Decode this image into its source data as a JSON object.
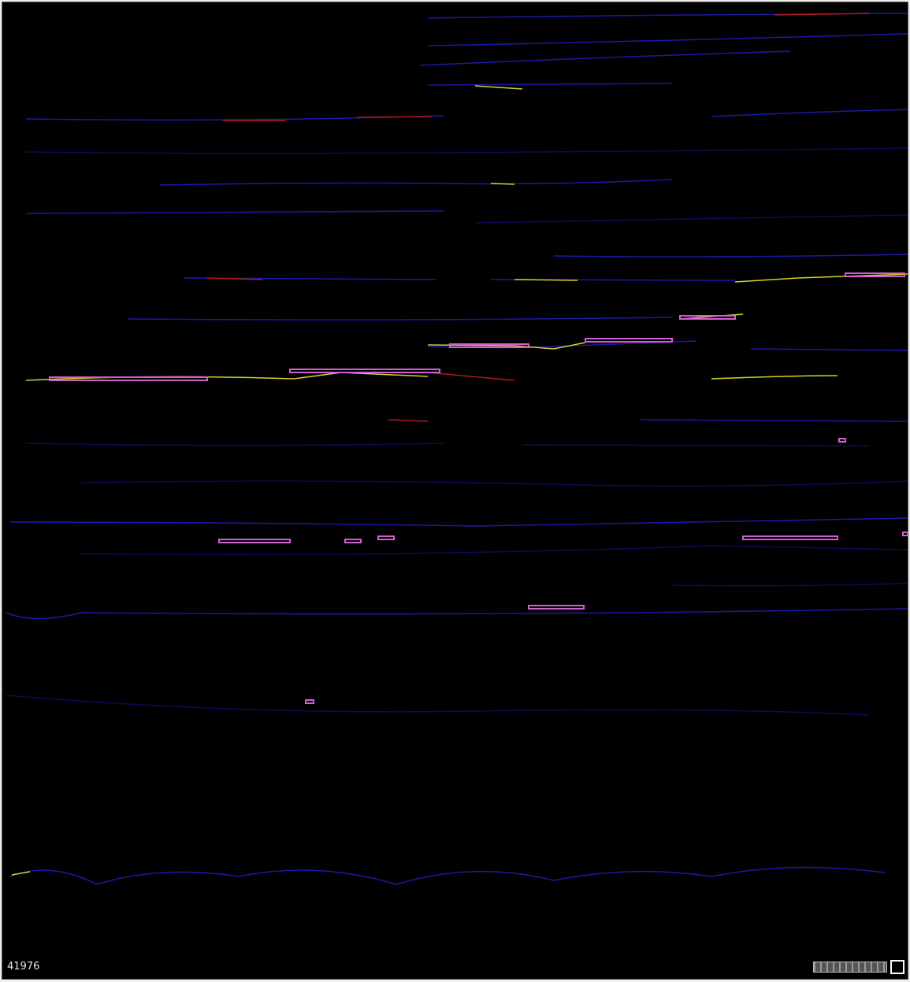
{
  "status": {
    "counter": "41976"
  }
}
